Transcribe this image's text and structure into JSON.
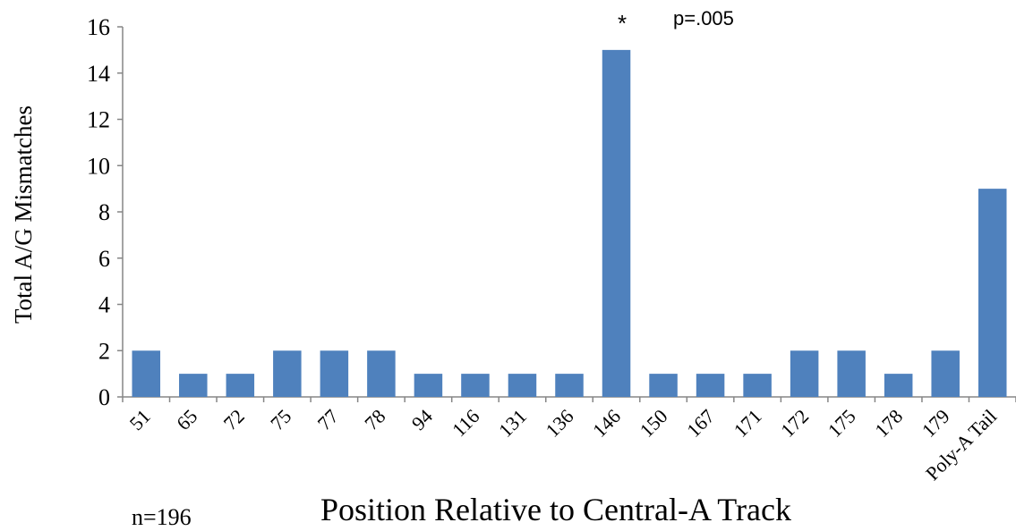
{
  "chart_data": {
    "type": "bar",
    "categories": [
      "51",
      "65",
      "72",
      "75",
      "77",
      "78",
      "94",
      "116",
      "131",
      "136",
      "146",
      "150",
      "167",
      "171",
      "172",
      "175",
      "178",
      "179",
      "Poly-A Tail"
    ],
    "values": [
      2,
      1,
      1,
      2,
      2,
      2,
      1,
      1,
      1,
      1,
      15,
      1,
      1,
      1,
      2,
      2,
      1,
      2,
      9
    ],
    "xlabel": "Position Relative to Central-A Track",
    "ylabel": "Total A/G Mismatches",
    "ylim": [
      0,
      16
    ],
    "yticks": [
      0,
      2,
      4,
      6,
      8,
      10,
      12,
      14,
      16
    ],
    "grid": false,
    "bar_color": "#4f81bd",
    "annotations": {
      "star": "*",
      "pvalue": "p=.005",
      "n": "n=196"
    }
  }
}
